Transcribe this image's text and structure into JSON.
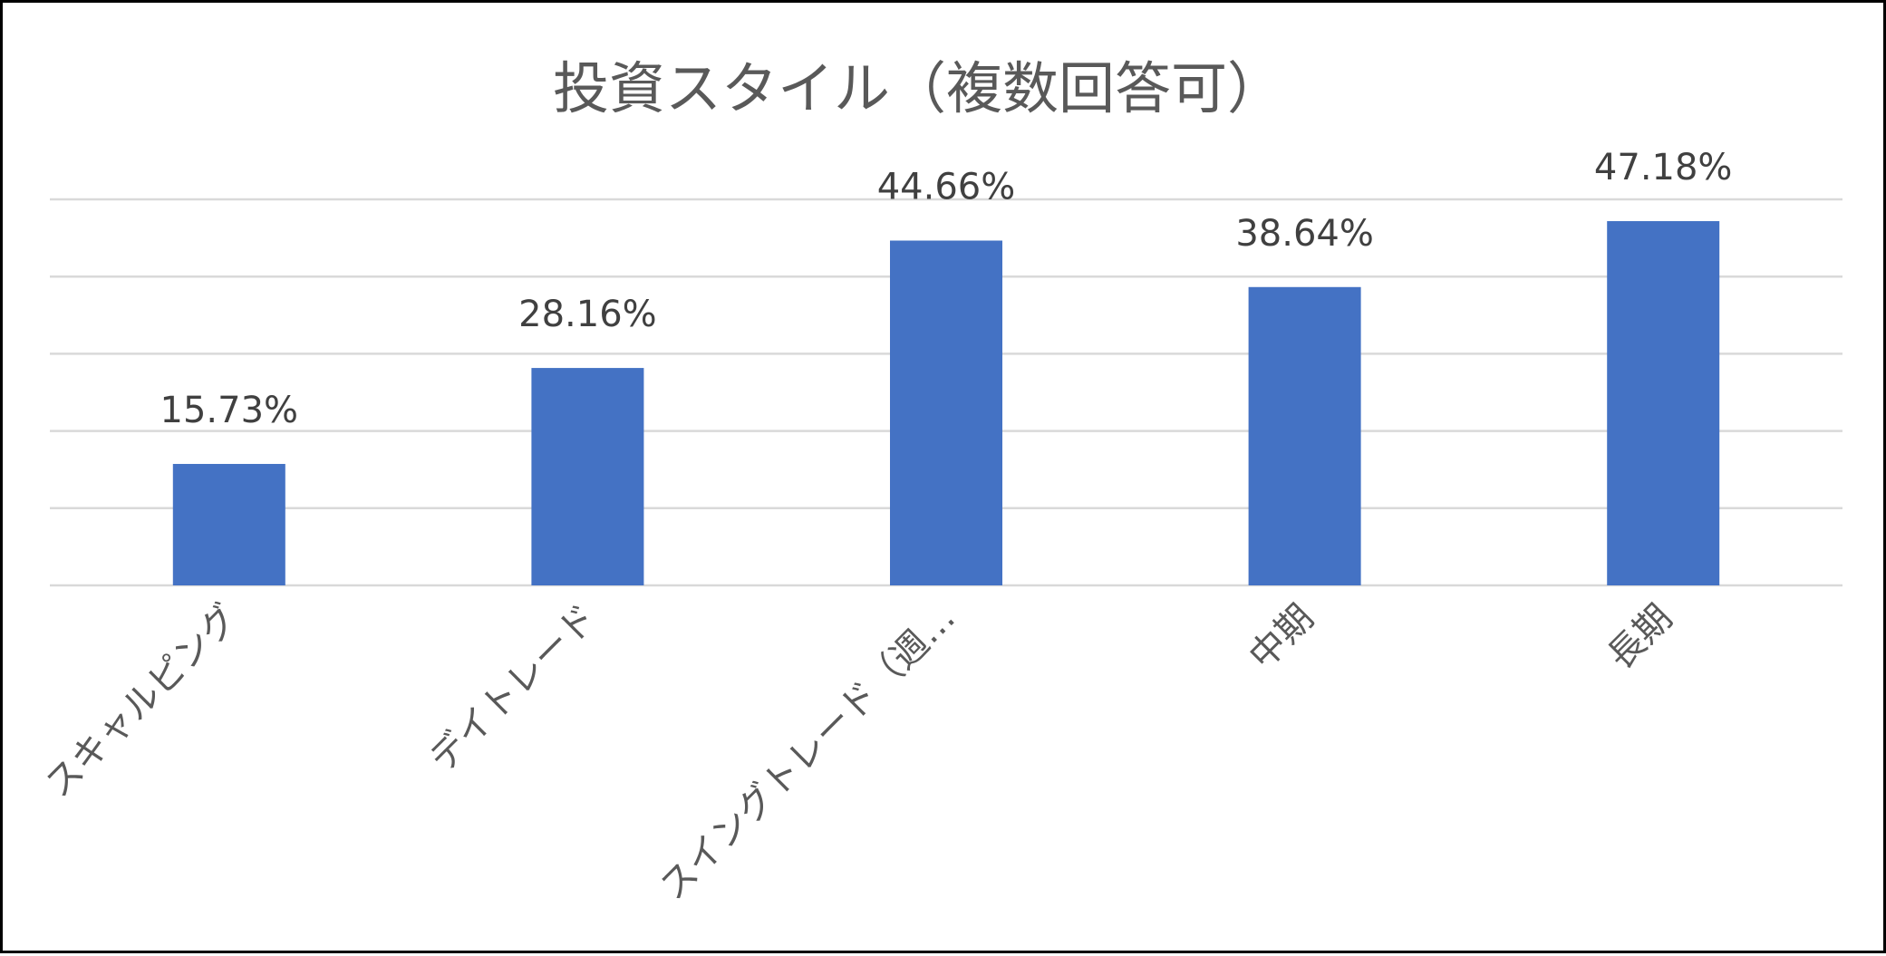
{
  "chart_data": {
    "type": "bar",
    "title": "投資スタイル（複数回答可）",
    "categories": [
      "スキャルピング",
      "デイトレード",
      "スイングトレード（週…",
      "中期",
      "長期"
    ],
    "values": [
      15.73,
      28.16,
      44.66,
      38.64,
      47.18
    ],
    "value_labels": [
      "15.73%",
      "28.16%",
      "44.66%",
      "38.64%",
      "47.18%"
    ],
    "ylim": [
      0,
      50
    ],
    "y_gridlines": [
      0,
      10,
      20,
      30,
      40,
      50
    ],
    "y_tick_labels_visible": false,
    "grid": true,
    "legend": "none",
    "bar_color": "#4472C4",
    "xlabel": "",
    "ylabel": ""
  }
}
